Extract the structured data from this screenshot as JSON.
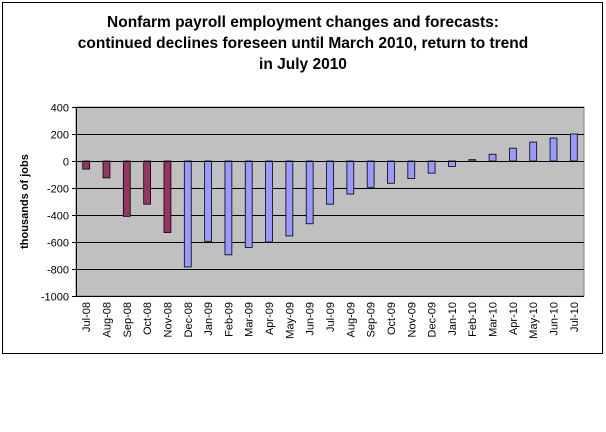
{
  "chart_data": {
    "type": "bar",
    "title_lines": [
      "Nonfarm payroll employment changes and forecasts:",
      "continued declines foreseen until March 2010, return to trend",
      "in July 2010"
    ],
    "xlabel": "",
    "ylabel": "thousands of jobs",
    "ylim": [
      -1000,
      400
    ],
    "yticks": [
      400,
      200,
      0,
      -200,
      -400,
      -600,
      -800,
      -1000
    ],
    "grid": true,
    "legend": "none",
    "categories": [
      "Jul-08",
      "Aug-08",
      "Sep-08",
      "Oct-08",
      "Nov-08",
      "Dec-08",
      "Jan-09",
      "Feb-09",
      "Mar-09",
      "Apr-09",
      "May-09",
      "Jun-09",
      "Jul-09",
      "Aug-09",
      "Sep-09",
      "Oct-09",
      "Nov-09",
      "Dec-09",
      "Jan-10",
      "Feb-10",
      "Mar-10",
      "Apr-10",
      "May-10",
      "Jun-10",
      "Jul-10"
    ],
    "values": [
      -60,
      -125,
      -410,
      -320,
      -530,
      -785,
      -595,
      -695,
      -640,
      -600,
      -555,
      -465,
      -320,
      -245,
      -195,
      -165,
      -130,
      -90,
      -40,
      10,
      50,
      95,
      140,
      170,
      200
    ],
    "series_kind": [
      "actual",
      "actual",
      "actual",
      "actual",
      "actual",
      "forecast",
      "forecast",
      "forecast",
      "forecast",
      "forecast",
      "forecast",
      "forecast",
      "forecast",
      "forecast",
      "forecast",
      "forecast",
      "forecast",
      "forecast",
      "forecast",
      "forecast",
      "forecast",
      "forecast",
      "forecast",
      "forecast",
      "forecast"
    ],
    "colors": {
      "actual": "#993366",
      "forecast": "#9999ff",
      "plot_bg": "#c0c0c0",
      "grid": "#000000"
    }
  }
}
